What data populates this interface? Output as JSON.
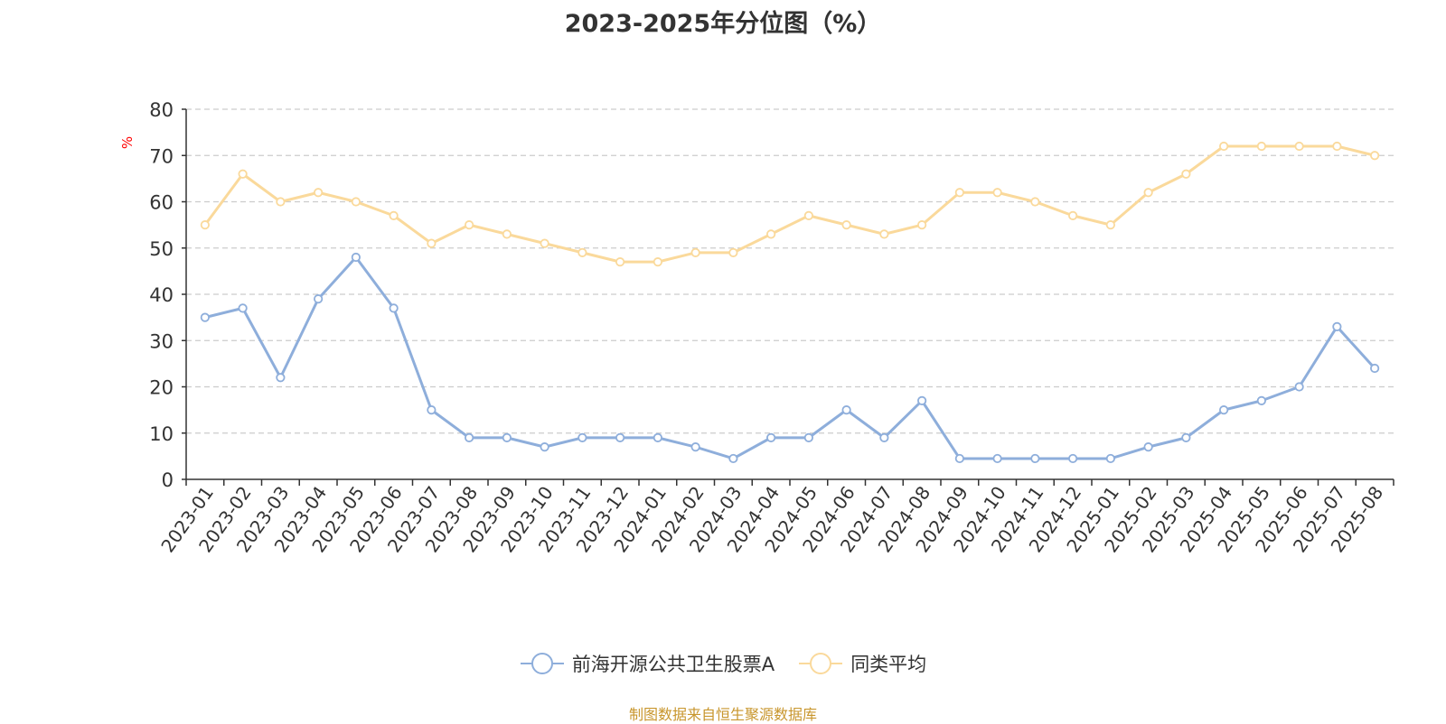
{
  "chart_data": {
    "type": "line",
    "title": "2023-2025年分位图（%）",
    "ylabel": "%",
    "xlabel": "",
    "ylim": [
      0,
      80
    ],
    "yticks": [
      0,
      10,
      20,
      30,
      40,
      50,
      60,
      70,
      80
    ],
    "grid": true,
    "legend_position": "bottom",
    "categories": [
      "2023-01",
      "2023-02",
      "2023-03",
      "2023-04",
      "2023-05",
      "2023-06",
      "2023-07",
      "2023-08",
      "2023-09",
      "2023-10",
      "2023-11",
      "2023-12",
      "2024-01",
      "2024-02",
      "2024-03",
      "2024-04",
      "2024-05",
      "2024-06",
      "2024-07",
      "2024-08",
      "2024-09",
      "2024-10",
      "2024-11",
      "2024-12",
      "2025-01",
      "2025-02",
      "2025-03",
      "2025-04",
      "2025-05",
      "2025-06",
      "2025-07",
      "2025-08"
    ],
    "series": [
      {
        "name": "前海开源公共卫生股票A",
        "color": "#8eaedb",
        "values": [
          35,
          37,
          22,
          39,
          48,
          37,
          15,
          9,
          9,
          7,
          9,
          9,
          9,
          7,
          4.5,
          9,
          9,
          15,
          9,
          17,
          4.5,
          4.5,
          4.5,
          4.5,
          4.5,
          7,
          9,
          15,
          17,
          20,
          33,
          24
        ]
      },
      {
        "name": "同类平均",
        "color": "#fad99b",
        "values": [
          55,
          66,
          60,
          62,
          60,
          57,
          51,
          55,
          53,
          51,
          49,
          47,
          47,
          49,
          49,
          53,
          57,
          55,
          53,
          55,
          62,
          62,
          60,
          57,
          55,
          62,
          66,
          72,
          72,
          72,
          72,
          70
        ]
      }
    ]
  },
  "source_note": "制图数据来自恒生聚源数据库",
  "colors": {
    "axis": "#333333",
    "grid": "#cccccc",
    "ylabel": "#ff0000"
  }
}
